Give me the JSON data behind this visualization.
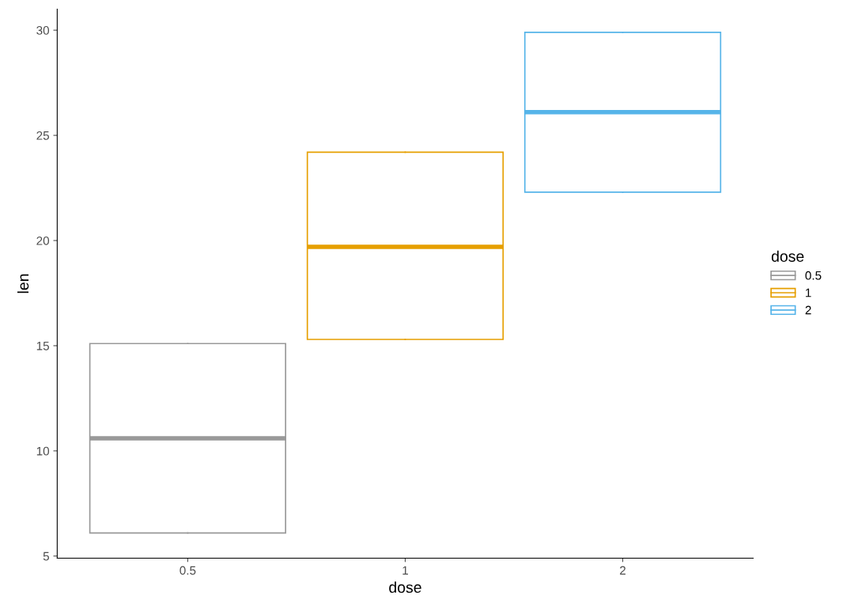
{
  "chart_data": {
    "type": "box",
    "xlabel": "dose",
    "ylabel": "len",
    "legend_title": "dose",
    "categories": [
      "0.5",
      "1",
      "2"
    ],
    "series": [
      {
        "name": "0.5",
        "color": "#999999",
        "boxes": [
          {
            "low": 6.1,
            "q1": 6.1,
            "median": 10.6,
            "q3": 15.1,
            "high": 15.1
          },
          null,
          null
        ]
      },
      {
        "name": "1",
        "color": "#e69f00",
        "boxes": [
          null,
          {
            "low": 15.3,
            "q1": 15.3,
            "median": 19.7,
            "q3": 24.2,
            "high": 24.2
          },
          null
        ]
      },
      {
        "name": "2",
        "color": "#56b4e9",
        "boxes": [
          null,
          null,
          {
            "low": 22.3,
            "q1": 22.3,
            "median": 26.1,
            "q3": 29.9,
            "high": 29.9
          }
        ]
      }
    ],
    "ylim": [
      4.9,
      31.0
    ],
    "yticks": [
      5,
      10,
      15,
      20,
      25,
      30
    ],
    "grid": false,
    "legend": "right"
  }
}
